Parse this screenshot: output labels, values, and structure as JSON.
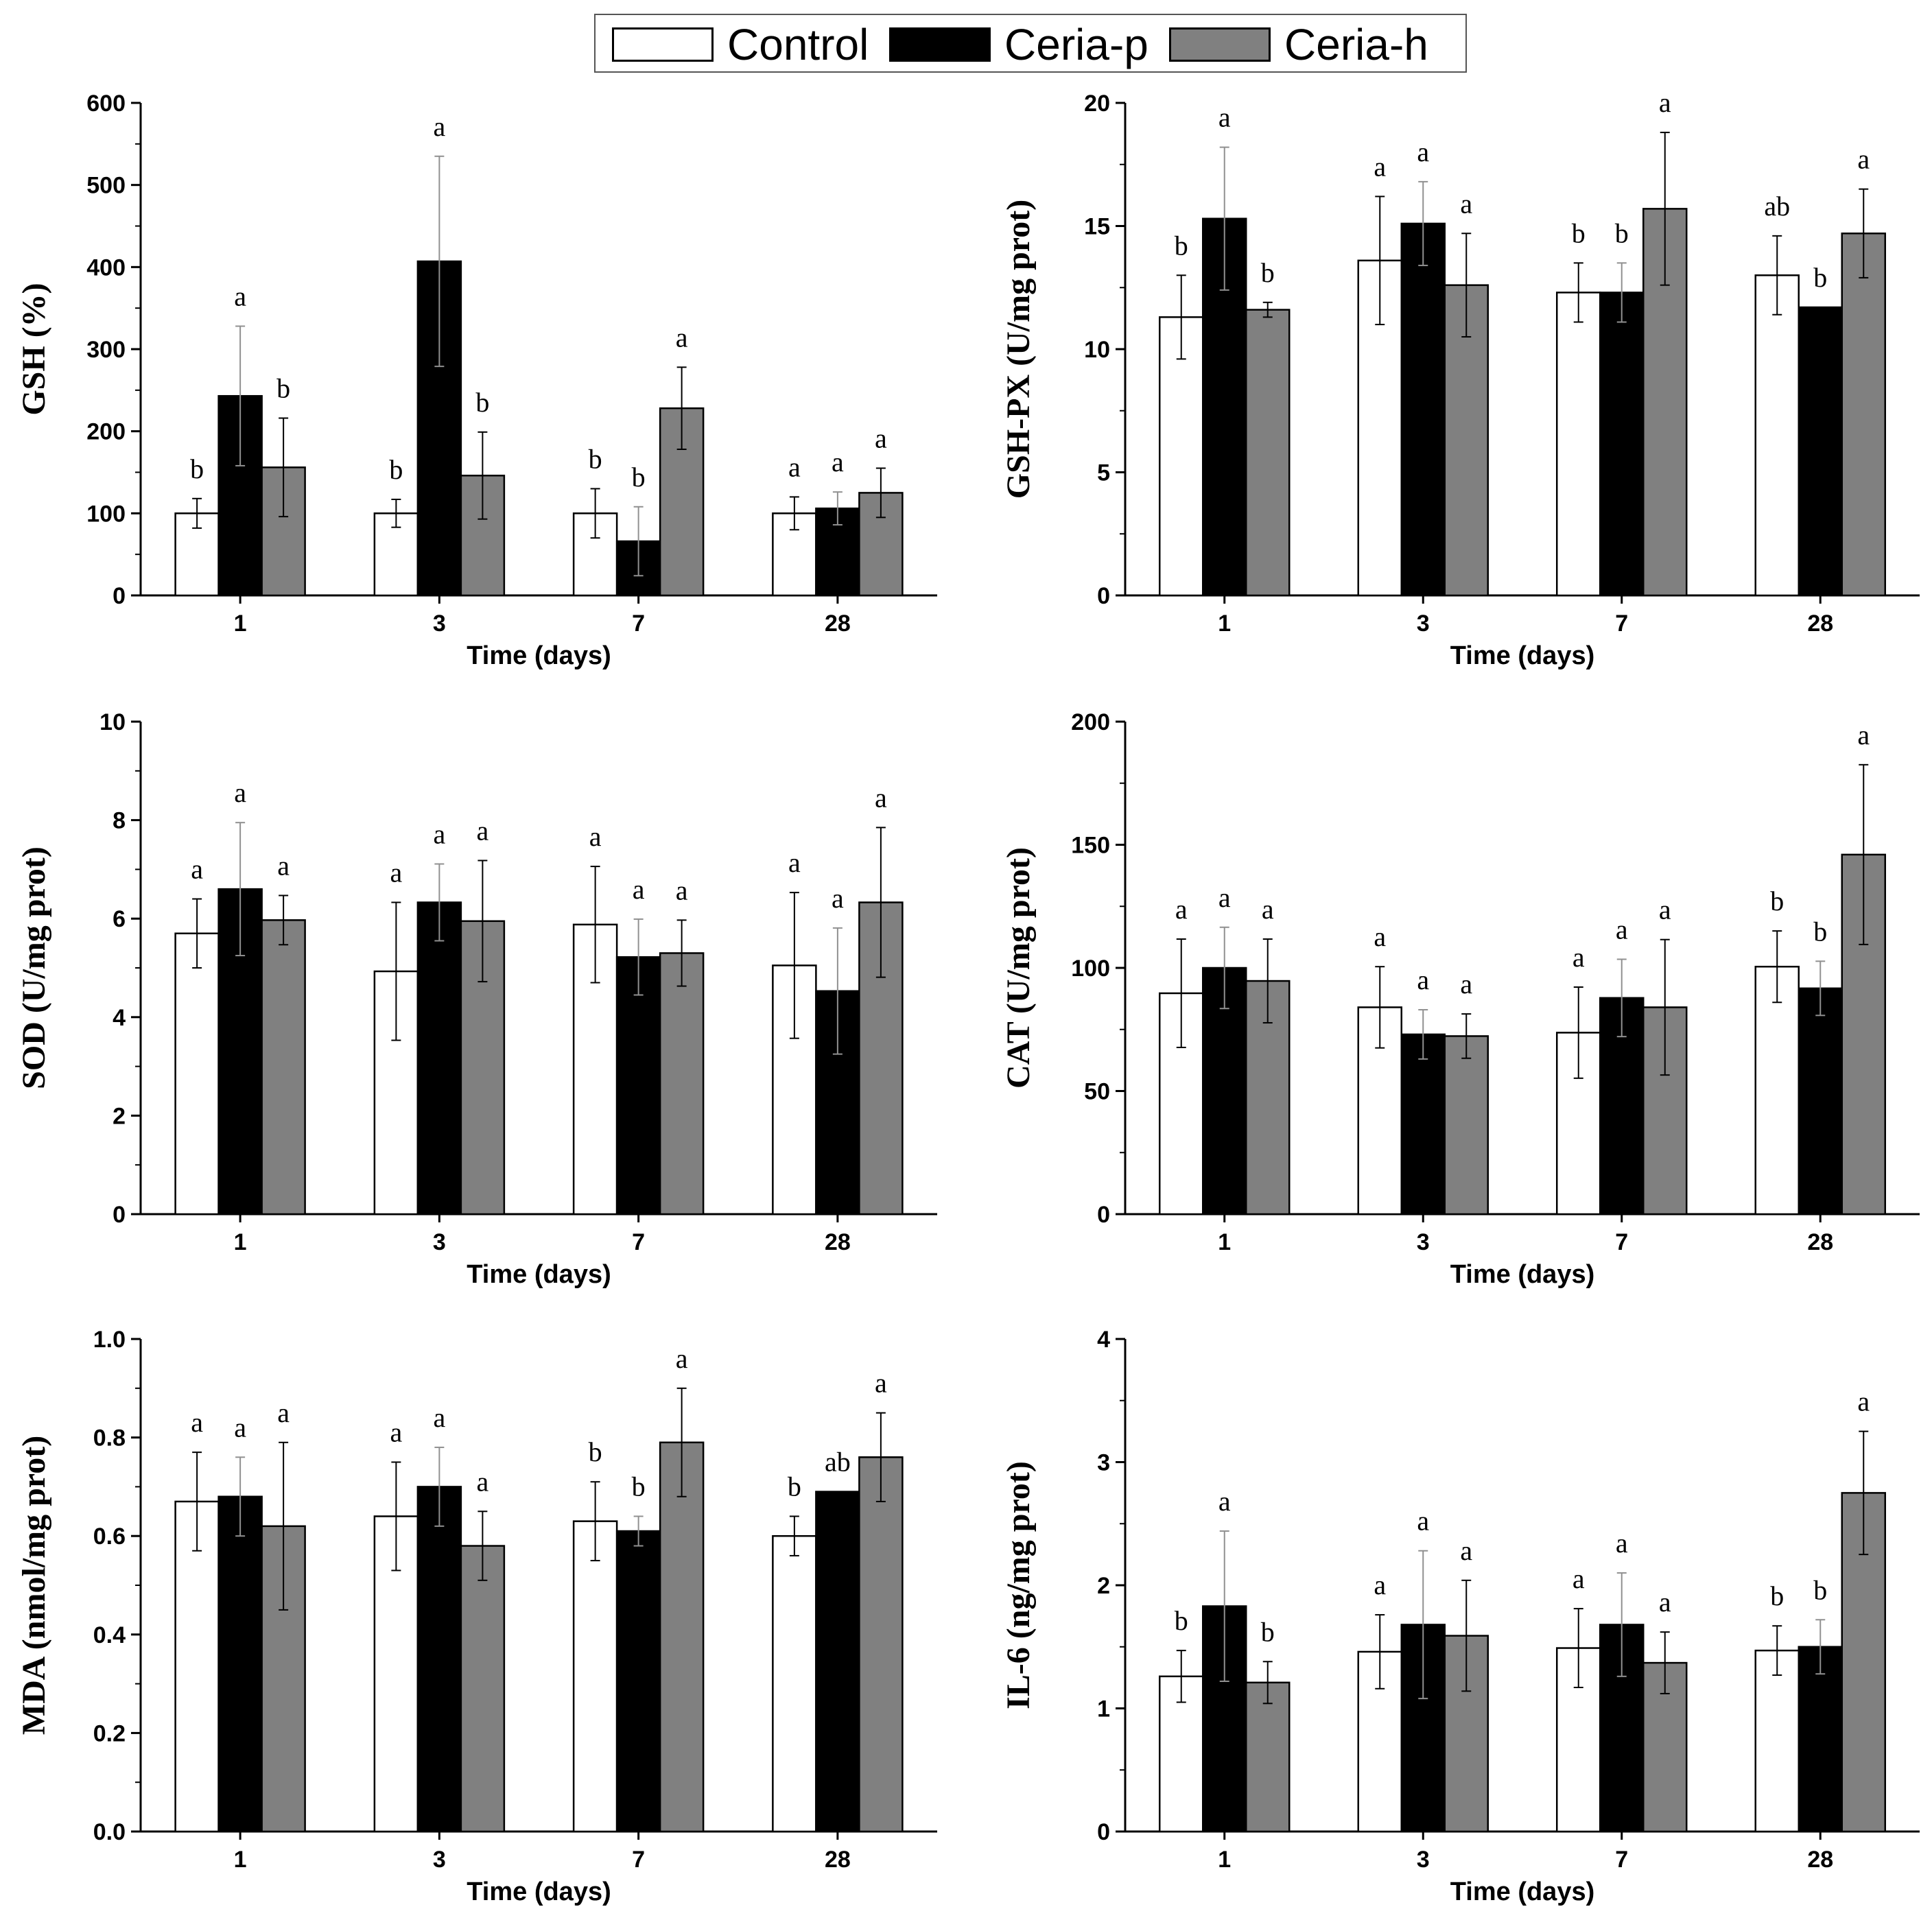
{
  "legend": {
    "items": [
      {
        "label": "Control",
        "color": "#ffffff"
      },
      {
        "label": "Ceria-p",
        "color": "#000000"
      },
      {
        "label": "Ceria-h",
        "color": "#808080"
      }
    ]
  },
  "colors": {
    "control": "#ffffff",
    "ceria_p": "#000000",
    "ceria_h": "#808080",
    "axis": "#000000",
    "errorbar_on_dark": "#909090"
  },
  "chart_data": [
    {
      "type": "bar",
      "categories": [
        "1",
        "3",
        "7",
        "28"
      ],
      "xlabel": "Time (days)",
      "ylabel": "GSH (%)",
      "ylim": [
        0,
        600
      ],
      "yticks": [
        "0",
        "100",
        "200",
        "300",
        "400",
        "500",
        "600"
      ],
      "series": [
        {
          "name": "Control",
          "values": [
            100,
            100,
            100,
            100
          ],
          "errors": [
            18,
            17,
            30,
            20
          ]
        },
        {
          "name": "Ceria-p",
          "values": [
            243,
            407,
            66,
            106
          ],
          "errors": [
            85,
            128,
            42,
            20
          ]
        },
        {
          "name": "Ceria-h",
          "values": [
            156,
            146,
            228,
            125
          ],
          "errors": [
            60,
            53,
            50,
            30
          ]
        }
      ],
      "labels": [
        [
          "b",
          "a",
          "b"
        ],
        [
          "b",
          "a",
          "b"
        ],
        [
          "b",
          "b",
          "a"
        ],
        [
          "a",
          "a",
          "a"
        ]
      ]
    },
    {
      "type": "bar",
      "categories": [
        "1",
        "3",
        "7",
        "28"
      ],
      "xlabel": "Time (days)",
      "ylabel": "GSH-PX (U/mg prot)",
      "ylim": [
        0,
        20
      ],
      "yticks": [
        "0",
        "5",
        "10",
        "15",
        "20"
      ],
      "series": [
        {
          "name": "Control",
          "values": [
            11.3,
            13.6,
            12.3,
            13.0
          ],
          "errors": [
            1.7,
            2.6,
            1.2,
            1.6
          ]
        },
        {
          "name": "Ceria-p",
          "values": [
            15.3,
            15.1,
            12.3,
            11.7
          ],
          "errors": [
            2.9,
            1.7,
            1.2,
            0
          ]
        },
        {
          "name": "Ceria-h",
          "values": [
            11.6,
            12.6,
            15.7,
            14.7
          ],
          "errors": [
            0.3,
            2.1,
            3.1,
            1.8
          ]
        }
      ],
      "labels": [
        [
          "b",
          "a",
          "b"
        ],
        [
          "a",
          "a",
          "a"
        ],
        [
          "b",
          "b",
          "a"
        ],
        [
          "ab",
          "b",
          "a"
        ]
      ]
    },
    {
      "type": "bar",
      "categories": [
        "1",
        "3",
        "7",
        "28"
      ],
      "xlabel": "Time (days)",
      "ylabel": "SOD (U/mg prot)",
      "ylim": [
        0,
        10
      ],
      "yticks": [
        "0",
        "2",
        "4",
        "6",
        "8",
        "10"
      ],
      "series": [
        {
          "name": "Control",
          "values": [
            5.7,
            4.93,
            5.88,
            5.05
          ],
          "errors": [
            0.7,
            1.4,
            1.18,
            1.48
          ]
        },
        {
          "name": "Ceria-p",
          "values": [
            6.6,
            6.33,
            5.22,
            4.53
          ],
          "errors": [
            1.35,
            0.78,
            0.77,
            1.28
          ]
        },
        {
          "name": "Ceria-h",
          "values": [
            5.97,
            5.95,
            5.3,
            6.33
          ],
          "errors": [
            0.5,
            1.23,
            0.67,
            1.52
          ]
        }
      ],
      "labels": [
        [
          "a",
          "a",
          "a"
        ],
        [
          "a",
          "a",
          "a"
        ],
        [
          "a",
          "a",
          "a"
        ],
        [
          "a",
          "a",
          "a"
        ]
      ]
    },
    {
      "type": "bar",
      "categories": [
        "1",
        "3",
        "7",
        "28"
      ],
      "xlabel": "Time (days)",
      "ylabel": "CAT (U/mg prot)",
      "ylim": [
        0,
        200
      ],
      "yticks": [
        "0",
        "50",
        "100",
        "150",
        "200"
      ],
      "series": [
        {
          "name": "Control",
          "values": [
            89.7,
            84.0,
            73.7,
            100.5
          ],
          "errors": [
            22,
            16.5,
            18.5,
            14.5
          ]
        },
        {
          "name": "Ceria-p",
          "values": [
            100.0,
            73.0,
            87.8,
            91.7
          ],
          "errors": [
            16.5,
            10,
            15.7,
            11
          ]
        },
        {
          "name": "Ceria-h",
          "values": [
            94.7,
            72.3,
            84.0,
            146.0
          ],
          "errors": [
            17,
            9,
            27.5,
            36.5
          ]
        }
      ],
      "labels": [
        [
          "a",
          "a",
          "a"
        ],
        [
          "a",
          "a",
          "a"
        ],
        [
          "a",
          "a",
          "a"
        ],
        [
          "b",
          "b",
          "a"
        ]
      ]
    },
    {
      "type": "bar",
      "categories": [
        "1",
        "3",
        "7",
        "28"
      ],
      "xlabel": "Time (days)",
      "ylabel": "MDA (nmol/mg prot)",
      "ylim": [
        0,
        1.0
      ],
      "yticks": [
        "0.0",
        "0.2",
        "0.4",
        "0.6",
        "0.8",
        "1.0"
      ],
      "series": [
        {
          "name": "Control",
          "values": [
            0.67,
            0.64,
            0.63,
            0.6
          ],
          "errors": [
            0.1,
            0.11,
            0.08,
            0.04
          ]
        },
        {
          "name": "Ceria-p",
          "values": [
            0.68,
            0.7,
            0.61,
            0.69
          ],
          "errors": [
            0.08,
            0.08,
            0.03,
            0
          ]
        },
        {
          "name": "Ceria-h",
          "values": [
            0.62,
            0.58,
            0.79,
            0.76
          ],
          "errors": [
            0.17,
            0.07,
            0.11,
            0.09
          ]
        }
      ],
      "labels": [
        [
          "a",
          "a",
          "a"
        ],
        [
          "a",
          "a",
          "a"
        ],
        [
          "b",
          "b",
          "a"
        ],
        [
          "b",
          "ab",
          "a"
        ]
      ]
    },
    {
      "type": "bar",
      "categories": [
        "1",
        "3",
        "7",
        "28"
      ],
      "xlabel": "Time (days)",
      "ylabel": "IL-6 (ng/mg prot)",
      "ylim": [
        0,
        4
      ],
      "yticks": [
        "0",
        "1",
        "2",
        "3",
        "4"
      ],
      "series": [
        {
          "name": "Control",
          "values": [
            1.26,
            1.46,
            1.49,
            1.47
          ],
          "errors": [
            0.21,
            0.3,
            0.32,
            0.2
          ]
        },
        {
          "name": "Ceria-p",
          "values": [
            1.83,
            1.68,
            1.68,
            1.5
          ],
          "errors": [
            0.61,
            0.6,
            0.42,
            0.22
          ]
        },
        {
          "name": "Ceria-h",
          "values": [
            1.21,
            1.59,
            1.37,
            2.75
          ],
          "errors": [
            0.17,
            0.45,
            0.25,
            0.5
          ]
        }
      ],
      "labels": [
        [
          "b",
          "a",
          "b"
        ],
        [
          "a",
          "a",
          "a"
        ],
        [
          "a",
          "a",
          "a"
        ],
        [
          "b",
          "b",
          "a"
        ]
      ]
    }
  ]
}
